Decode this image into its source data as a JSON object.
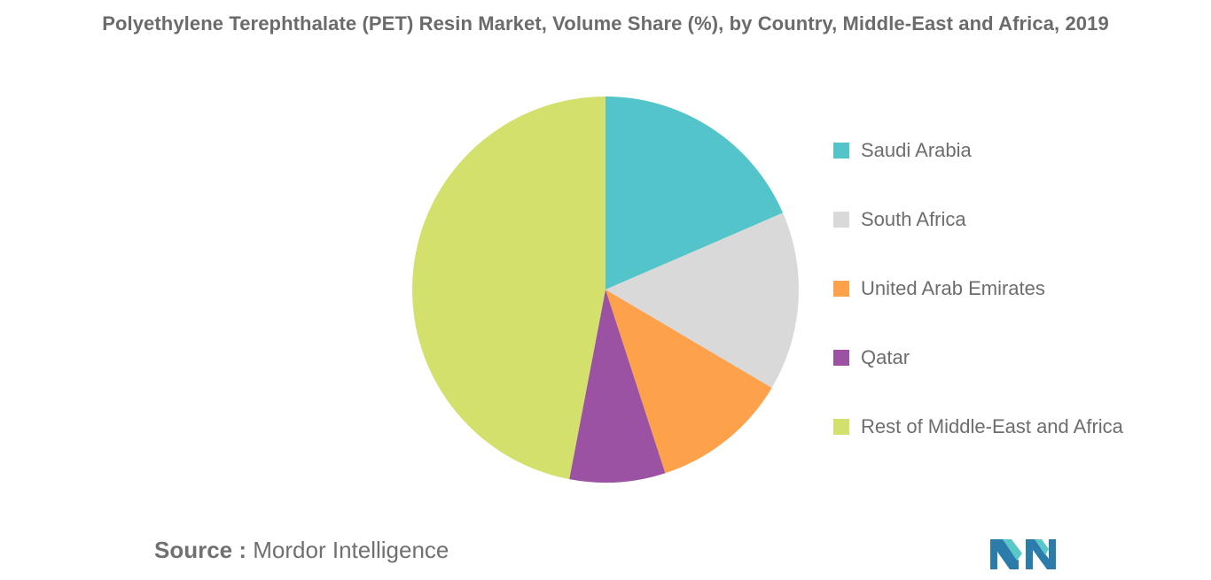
{
  "chart_data": {
    "type": "pie",
    "title": "Polyethylene Terephthalate (PET) Resin Market, Volume Share (%), by Country, Middle-East and Africa, 2019",
    "categories": [
      "Saudi Arabia",
      "South Africa",
      "United Arab Emirates",
      "Qatar",
      "Rest of Middle-East and Africa"
    ],
    "values": [
      18.5,
      15,
      11.5,
      8,
      47
    ],
    "colors": [
      "#52c4ca",
      "#d9d9d9",
      "#fda14b",
      "#9c52a3",
      "#d3e06c"
    ],
    "legend_position": "right",
    "start_angle_deg": 0,
    "direction": "clockwise"
  },
  "source": {
    "label": "Source :",
    "text": "Mordor Intelligence"
  },
  "logo": {
    "icon": "mordor-intelligence-logo-icon",
    "colors": [
      "#2b7bab",
      "#5ac8c8"
    ]
  }
}
